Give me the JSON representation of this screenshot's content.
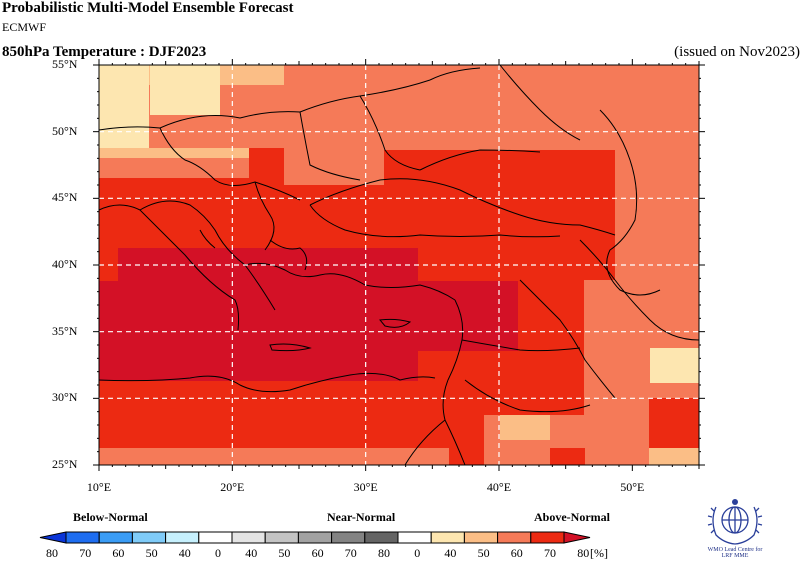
{
  "header": {
    "title": "Probabilistic Multi-Model Ensemble Forecast",
    "model": "ECMWF",
    "subtitle": "850hPa Temperature : DJF2023",
    "issued": "(issued on Nov2023)"
  },
  "map": {
    "lon_range": [
      10,
      55
    ],
    "lat_range": [
      25,
      55
    ],
    "lat_labels": [
      "25°N",
      "30°N",
      "35°N",
      "40°N",
      "45°N",
      "50°N",
      "55°N"
    ],
    "lon_labels": [
      "10°E",
      "20°E",
      "30°E",
      "40°E",
      "50°E"
    ],
    "gridlines": "dashed white every 10° lon and 5° lat"
  },
  "legend": {
    "below_label": "Below-Normal",
    "near_label": "Near-Normal",
    "above_label": "Above-Normal",
    "unit": "[%]",
    "bins": [
      {
        "label": "80",
        "color": "#0a35d8"
      },
      {
        "label": "70",
        "color": "#1e6df0"
      },
      {
        "label": "60",
        "color": "#3a9cf5"
      },
      {
        "label": "50",
        "color": "#7fcbf8"
      },
      {
        "label": "40",
        "color": "#c6f0fd"
      },
      {
        "label": "0",
        "color": "#ffffff"
      },
      {
        "label": "40",
        "color": "#e4e4e4"
      },
      {
        "label": "50",
        "color": "#c4c4c4"
      },
      {
        "label": "60",
        "color": "#a2a2a2"
      },
      {
        "label": "70",
        "color": "#838383"
      },
      {
        "label": "80",
        "color": "#646464"
      },
      {
        "label": "0",
        "color": "#ffffff"
      },
      {
        "label": "40",
        "color": "#fde6b0"
      },
      {
        "label": "50",
        "color": "#fbbe86"
      },
      {
        "label": "60",
        "color": "#f57a58"
      },
      {
        "label": "70",
        "color": "#ec2a12"
      },
      {
        "label": "80",
        "color": "#d31126"
      }
    ]
  },
  "logo": {
    "text_line1": "WMO Lead Centre for",
    "text_line2": "LRF MME"
  }
}
